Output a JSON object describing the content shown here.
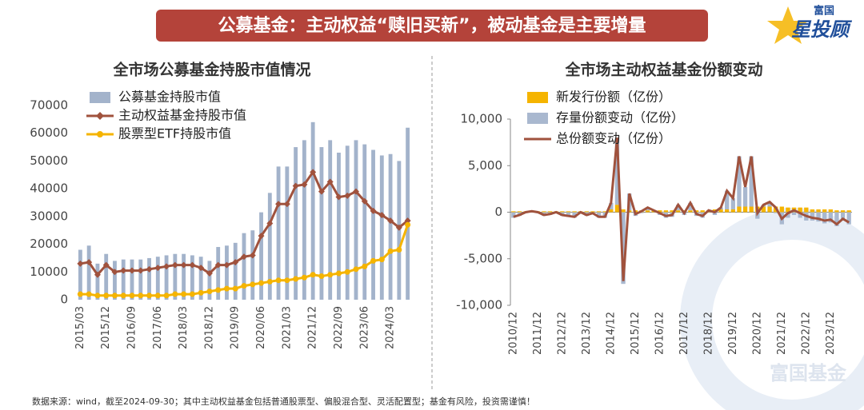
{
  "header": {
    "title": "公募基金：主动权益“赎旧买新”，被动基金是主要增量",
    "logo_top": "富国",
    "logo_main": "星投顾"
  },
  "watermark": "富国基金",
  "footnote": "数据来源：wind，截至2024-09-30；其中主动权益基金包括普通股票型、偏股混合型、灵活配置型；基金有风险，投资需谨慎！",
  "chart_data": [
    {
      "type": "bar",
      "title": "全市场公募基金持股市值情况",
      "categories": [
        "2015/03",
        null,
        null,
        "2015/12",
        null,
        null,
        "2016/09",
        null,
        null,
        "2017/06",
        null,
        null,
        "2018/03",
        null,
        null,
        "2018/12",
        null,
        null,
        "2019/09",
        null,
        null,
        "2020/06",
        null,
        null,
        "2021/03",
        null,
        null,
        "2021/12",
        null,
        null,
        "2022/09",
        null,
        null,
        "2023/06",
        null,
        null,
        "2024/03",
        null,
        null
      ],
      "series": [
        {
          "name": "公募基金持股市值",
          "type": "bar",
          "color": "#a3b3cb",
          "values": [
            18000,
            19500,
            13000,
            16500,
            14000,
            14500,
            14500,
            14500,
            15000,
            15500,
            16000,
            16500,
            16500,
            16000,
            15500,
            14000,
            19000,
            19500,
            20500,
            24000,
            25000,
            31500,
            38500,
            48000,
            48000,
            55000,
            57500,
            64000,
            55000,
            57500,
            53000,
            55500,
            57500,
            56000,
            54000,
            52000,
            52500,
            50000,
            62000
          ]
        },
        {
          "name": "主动权益基金持股市值",
          "type": "line",
          "marker": "diamond",
          "color": "#a0523d",
          "values": [
            13000,
            13500,
            9000,
            12500,
            10000,
            10500,
            10500,
            10500,
            11000,
            11500,
            12000,
            12500,
            12500,
            12500,
            11500,
            9500,
            12500,
            12500,
            13500,
            15500,
            16000,
            23000,
            27500,
            34500,
            34500,
            41000,
            41500,
            46000,
            39000,
            42500,
            37000,
            37500,
            39000,
            35500,
            32000,
            30500,
            28500,
            26000,
            28500
          ]
        },
        {
          "name": "股票型ETF持股市值",
          "type": "line",
          "marker": "circle",
          "color": "#f5b400",
          "values": [
            2000,
            2000,
            1500,
            1500,
            1500,
            1500,
            1500,
            1500,
            1500,
            1500,
            1500,
            2000,
            2000,
            2000,
            2500,
            3000,
            3500,
            4000,
            4000,
            5000,
            5500,
            6000,
            6500,
            7000,
            7000,
            7500,
            8000,
            9000,
            8500,
            9000,
            9500,
            10000,
            11000,
            12000,
            14000,
            14500,
            17500,
            18000,
            27000
          ]
        }
      ],
      "ylim": [
        0,
        70000
      ],
      "yticks": [
        0,
        10000,
        20000,
        30000,
        40000,
        50000,
        60000,
        70000
      ],
      "grid": false,
      "stacked": false
    },
    {
      "type": "bar",
      "title": "全市场主动权益基金份额变动",
      "categories": [
        "2010/12",
        null,
        null,
        null,
        "2011/12",
        null,
        null,
        null,
        "2012/12",
        null,
        null,
        null,
        "2013/12",
        null,
        null,
        null,
        "2014/12",
        null,
        null,
        null,
        "2015/12",
        null,
        null,
        null,
        "2016/12",
        null,
        null,
        null,
        "2017/12",
        null,
        null,
        null,
        "2018/12",
        null,
        null,
        null,
        "2019/12",
        null,
        null,
        null,
        "2020/12",
        null,
        null,
        null,
        "2021/12",
        null,
        null,
        null,
        "2022/12",
        null,
        null,
        null,
        "2023/12",
        null,
        null,
        null
      ],
      "series": [
        {
          "name": "新发行份额（亿份）",
          "type": "bar",
          "color": "#f5b400",
          "values": [
            100,
            100,
            100,
            100,
            100,
            100,
            100,
            100,
            100,
            100,
            100,
            100,
            100,
            100,
            100,
            100,
            300,
            800,
            300,
            200,
            200,
            200,
            200,
            200,
            200,
            200,
            200,
            200,
            200,
            200,
            200,
            200,
            200,
            300,
            300,
            300,
            300,
            600,
            600,
            600,
            600,
            600,
            600,
            600,
            600,
            500,
            500,
            500,
            500,
            300,
            300,
            300,
            300,
            200,
            200,
            200
          ]
        },
        {
          "name": "存量份额变动（亿份）",
          "type": "bar",
          "color": "#a9b8cf",
          "values": [
            -600,
            -400,
            -100,
            0,
            -100,
            -400,
            -300,
            -100,
            -400,
            -500,
            -600,
            -100,
            -400,
            -200,
            -600,
            -600,
            700,
            7200,
            -7700,
            1800,
            -400,
            -100,
            300,
            0,
            -300,
            -600,
            -500,
            600,
            -300,
            800,
            -400,
            -600,
            0,
            -300,
            200,
            2000,
            1200,
            5400,
            2100,
            5400,
            -700,
            200,
            500,
            -100,
            -1300,
            -600,
            -300,
            -600,
            -900,
            -900,
            -1000,
            -1200,
            -1100,
            -1500,
            -900,
            -1300
          ]
        },
        {
          "name": "总份额变动（亿份）",
          "type": "line",
          "color": "#a0523d",
          "values": [
            -500,
            -300,
            0,
            100,
            0,
            -300,
            -200,
            0,
            -300,
            -400,
            -500,
            0,
            -300,
            -100,
            -500,
            -500,
            1000,
            8000,
            -7400,
            2000,
            -200,
            100,
            500,
            200,
            -100,
            -400,
            -300,
            800,
            -100,
            1000,
            -200,
            -400,
            200,
            0,
            500,
            2300,
            1500,
            6000,
            2700,
            6000,
            -100,
            800,
            1100,
            500,
            -700,
            -100,
            200,
            -100,
            -400,
            -600,
            -700,
            -900,
            -800,
            -1300,
            -700,
            -1100
          ]
        }
      ],
      "ylim": [
        -10000,
        10000
      ],
      "yticks": [
        {
          "value": -10000,
          "label": "-10,000"
        },
        {
          "value": -5000,
          "label": "-5,000"
        },
        0,
        {
          "value": 5000,
          "label": "5,000"
        },
        {
          "value": 10000,
          "label": "10,000"
        }
      ],
      "grid": false,
      "stacked": true
    }
  ]
}
